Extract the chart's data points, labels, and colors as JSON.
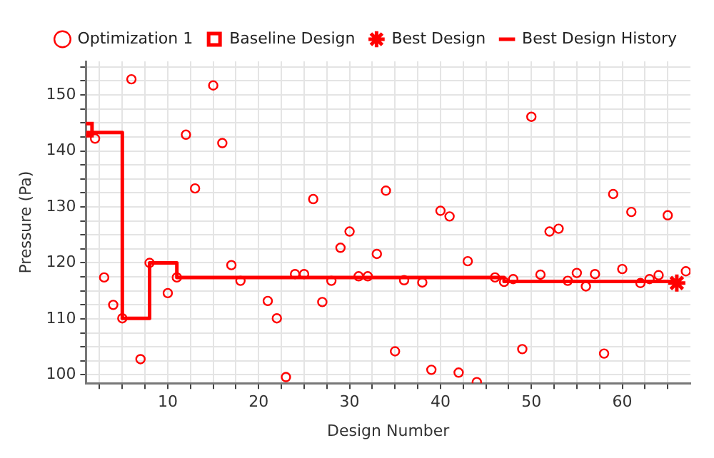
{
  "chart_data": {
    "type": "scatter",
    "xlabel": "Design Number",
    "ylabel": "Pressure (Pa)",
    "xlim": [
      1,
      67.5
    ],
    "ylim": [
      98.5,
      156
    ],
    "xticks": [
      {
        "value": 2.5,
        "label": null
      },
      {
        "value": 5,
        "label": null
      },
      {
        "value": 7.5,
        "label": null
      },
      10,
      {
        "value": 12.5,
        "label": null
      },
      {
        "value": 15,
        "label": null
      },
      {
        "value": 17.5,
        "label": null
      },
      20,
      {
        "value": 22.5,
        "label": null
      },
      {
        "value": 25,
        "label": null
      },
      {
        "value": 27.5,
        "label": null
      },
      30,
      {
        "value": 32.5,
        "label": null
      },
      {
        "value": 35,
        "label": null
      },
      {
        "value": 37.5,
        "label": null
      },
      40,
      {
        "value": 42.5,
        "label": null
      },
      {
        "value": 45,
        "label": null
      },
      {
        "value": 47.5,
        "label": null
      },
      50,
      {
        "value": 52.5,
        "label": null
      },
      {
        "value": 55,
        "label": null
      },
      {
        "value": 57.5,
        "label": null
      },
      60,
      {
        "value": 62.5,
        "label": null
      },
      {
        "value": 65,
        "label": null
      }
    ],
    "yticks": [
      100,
      {
        "value": 102.5,
        "label": null
      },
      {
        "value": 105,
        "label": null
      },
      {
        "value": 107.5,
        "label": null
      },
      110,
      {
        "value": 112.5,
        "label": null
      },
      {
        "value": 115,
        "label": null
      },
      {
        "value": 117.5,
        "label": null
      },
      120,
      {
        "value": 122.5,
        "label": null
      },
      {
        "value": 125,
        "label": null
      },
      {
        "value": 127.5,
        "label": null
      },
      130,
      {
        "value": 132.5,
        "label": null
      },
      {
        "value": 135,
        "label": null
      },
      {
        "value": 137.5,
        "label": null
      },
      140,
      {
        "value": 142.5,
        "label": null
      },
      {
        "value": 145,
        "label": null
      },
      {
        "value": 147.5,
        "label": null
      },
      150,
      {
        "value": 152.5,
        "label": null
      },
      {
        "value": 155,
        "label": null
      }
    ],
    "grid": true,
    "legend": "top right",
    "series": [
      {
        "name": "Optimization 1",
        "type": "scatter",
        "marker": "circle",
        "color": "#ff0000",
        "x": [
          2,
          3,
          4,
          5,
          6,
          7,
          8,
          10,
          11,
          12,
          13,
          15,
          16,
          17,
          18,
          21,
          22,
          23,
          24,
          25,
          26,
          27,
          28,
          29,
          30,
          31,
          32,
          33,
          34,
          35,
          36,
          38,
          39,
          40,
          41,
          42,
          43,
          44,
          46,
          47,
          48,
          49,
          50,
          51,
          52,
          53,
          54,
          55,
          56,
          57,
          58,
          59,
          60,
          61,
          62,
          63,
          64,
          65,
          67
        ],
        "values": [
          142.2,
          117.4,
          112.5,
          110.1,
          152.8,
          102.8,
          120.0,
          114.6,
          117.4,
          142.9,
          133.3,
          151.7,
          141.4,
          119.6,
          116.8,
          113.2,
          110.1,
          99.6,
          118.0,
          118.0,
          131.4,
          113.0,
          116.8,
          122.7,
          125.6,
          117.6,
          117.6,
          121.6,
          132.9,
          104.2,
          116.9,
          116.5,
          100.9,
          129.3,
          128.3,
          100.4,
          120.3,
          98.7,
          117.4,
          116.6,
          117.1,
          104.6,
          146.1,
          117.9,
          125.6,
          126.1,
          116.8,
          118.2,
          115.8,
          118.0,
          103.8,
          132.3,
          118.9,
          129.1,
          116.4,
          117.1,
          117.8,
          128.5,
          118.5
        ]
      },
      {
        "name": "Baseline Design",
        "type": "scatter",
        "marker": "square",
        "color": "#ff0000",
        "x": [
          1
        ],
        "values": [
          143.8
        ]
      },
      {
        "name": "Best Design",
        "type": "scatter",
        "marker": "cross",
        "color": "#ff0000",
        "x": [
          66
        ],
        "values": [
          116.4
        ]
      },
      {
        "name": "Best Design History",
        "type": "step",
        "color": "#ff0000",
        "x": [
          1,
          5,
          8,
          11,
          47,
          66
        ],
        "values": [
          143.3,
          110.1,
          120.0,
          117.4,
          116.7,
          116.4
        ]
      }
    ]
  }
}
